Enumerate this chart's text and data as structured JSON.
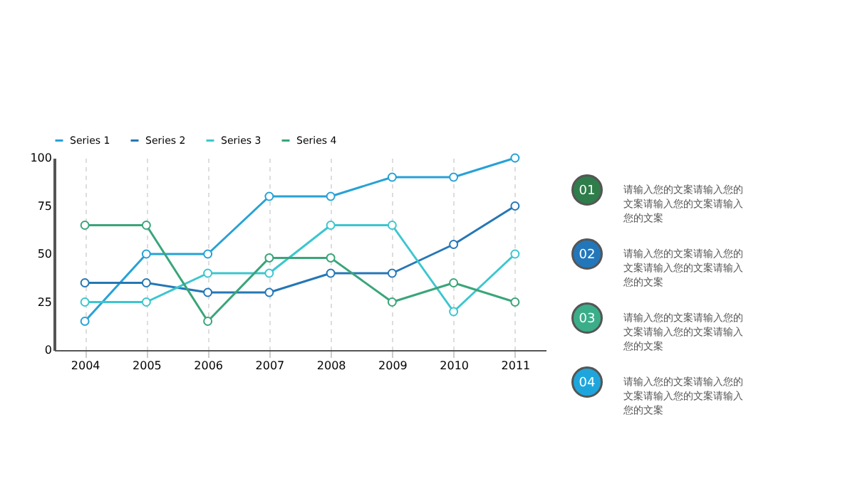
{
  "chart_data": {
    "type": "line",
    "categories": [
      "2004",
      "2005",
      "2006",
      "2007",
      "2008",
      "2009",
      "2010",
      "2011"
    ],
    "series": [
      {
        "name": "Series 1",
        "color": "#27a1d6",
        "values": [
          15,
          50,
          50,
          80,
          80,
          90,
          90,
          100
        ]
      },
      {
        "name": "Series 2",
        "color": "#2577b5",
        "values": [
          35,
          35,
          30,
          30,
          40,
          40,
          55,
          75
        ]
      },
      {
        "name": "Series 3",
        "color": "#3cc6cf",
        "values": [
          25,
          25,
          40,
          40,
          65,
          65,
          20,
          50
        ]
      },
      {
        "name": "Series 4",
        "color": "#3aa57a",
        "values": [
          65,
          65,
          15,
          48,
          48,
          25,
          35,
          25
        ]
      }
    ],
    "ylim": [
      0,
      100
    ],
    "yticks": [
      0,
      25,
      50,
      75,
      100
    ],
    "grid": "x",
    "legend": "top",
    "marker": "circle",
    "line_style": "solid",
    "annotations": [
      "01",
      "请输入您的文案请输入您的文案请输入您的文案请输入您的文案",
      "02",
      "请输入您的文案请输入您的文案请输入您的文案请输入您的文案",
      "03",
      "请输入您的文案请输入您的文案请输入您的文案请输入您的文案",
      "04",
      "请输入您的文案请输入您的文案请输入您的文案请输入您的文案"
    ]
  }
}
